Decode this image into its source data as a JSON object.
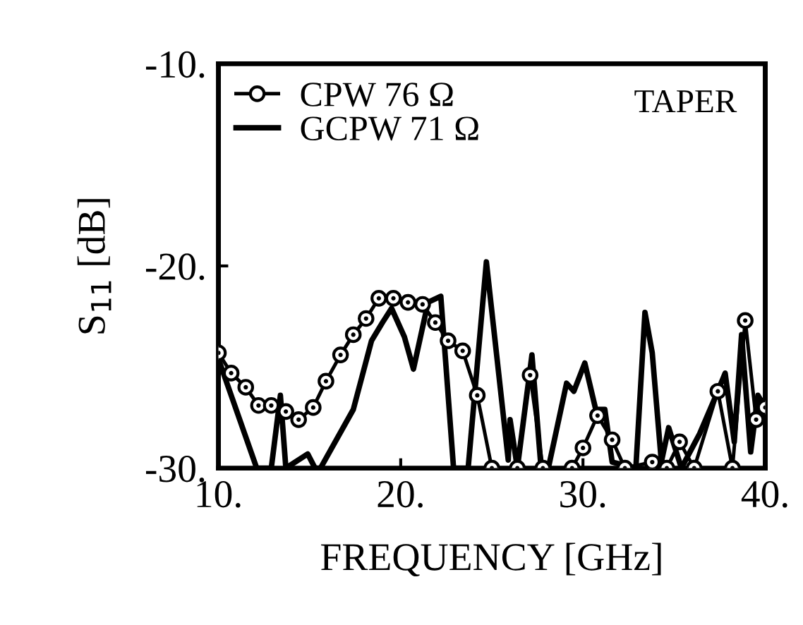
{
  "chart_data": {
    "type": "line",
    "xlabel": "FREQUENCY [GHz]",
    "ylabel": "S$_{11}$ [dB]",
    "annotations": [
      "TAPER"
    ],
    "xlim": [
      10,
      40
    ],
    "ylim": [
      -30,
      -10
    ],
    "xticks": [
      {
        "value": 10,
        "label": "10."
      },
      {
        "value": 20,
        "label": "20."
      },
      {
        "value": 30,
        "label": "30."
      },
      {
        "value": 40,
        "label": "40."
      }
    ],
    "yticks": [
      {
        "value": -30,
        "label": "-30."
      },
      {
        "value": -20,
        "label": "-20."
      },
      {
        "value": -10,
        "label": "-10."
      }
    ],
    "grid": false,
    "legend": "top left",
    "series": [
      {
        "name": "CPW 76 Ω",
        "color": "#000000",
        "marker": "circle",
        "x": [
          10,
          10.7,
          11.5,
          12.2,
          12.9,
          13.7,
          14.4,
          15.2,
          15.9,
          16.7,
          17.4,
          18.1,
          18.8,
          19.6,
          20.4,
          21.2,
          21.9,
          22.6,
          23.4,
          24.2,
          25.0,
          26.4,
          27.1,
          27.8,
          29.4,
          30.0,
          30.8,
          31.6,
          32.3,
          33.8,
          34.6,
          35.3,
          36.1,
          37.4,
          38.2,
          38.9,
          39.5,
          40
        ],
        "values": [
          -24.3,
          -25.3,
          -26.0,
          -26.9,
          -26.9,
          -27.2,
          -27.6,
          -27.0,
          -25.7,
          -24.4,
          -23.4,
          -22.6,
          -21.6,
          -21.6,
          -21.8,
          -21.9,
          -22.8,
          -23.7,
          -24.2,
          -26.4,
          -30,
          -30,
          -25.4,
          -30,
          -30,
          -29.0,
          -27.4,
          -28.6,
          -30,
          -29.7,
          -30,
          -28.7,
          -30,
          -26.2,
          -30,
          -22.7,
          -27.6,
          -27.0
        ]
      },
      {
        "name": "GCPW 71 Ω",
        "color": "#000000",
        "marker": "none",
        "x": [
          10,
          12.1,
          12.9,
          13.4,
          13.7,
          14.9,
          15.3,
          15.6,
          17.4,
          18.4,
          19.0,
          19.5,
          20.2,
          20.7,
          21.5,
          22.2,
          22.9,
          23.7,
          24.7,
          25.9,
          26.0,
          26.4,
          27.2,
          27.7,
          28.1,
          29.1,
          29.5,
          30.1,
          30.7,
          31.2,
          31.6,
          32.9,
          33.4,
          33.8,
          34.3,
          34.7,
          35.4,
          36.4,
          37.3,
          37.8,
          38.3,
          38.7,
          39.2,
          39.6,
          40
        ],
        "values": [
          -24.6,
          -30,
          -30,
          -26.4,
          -30,
          -29.3,
          -30,
          -30,
          -27.1,
          -23.7,
          -22.8,
          -22.1,
          -23.5,
          -25.1,
          -21.8,
          -21.5,
          -30,
          -30,
          -19.8,
          -29.6,
          -27.6,
          -30,
          -24.4,
          -30,
          -30,
          -25.8,
          -26.2,
          -24.8,
          -27.1,
          -27.1,
          -29.7,
          -30,
          -22.3,
          -24.3,
          -29.7,
          -28.0,
          -30,
          -28.3,
          -26.4,
          -25.3,
          -28.7,
          -23.4,
          -29.2,
          -26.4,
          -27.0
        ]
      }
    ]
  }
}
